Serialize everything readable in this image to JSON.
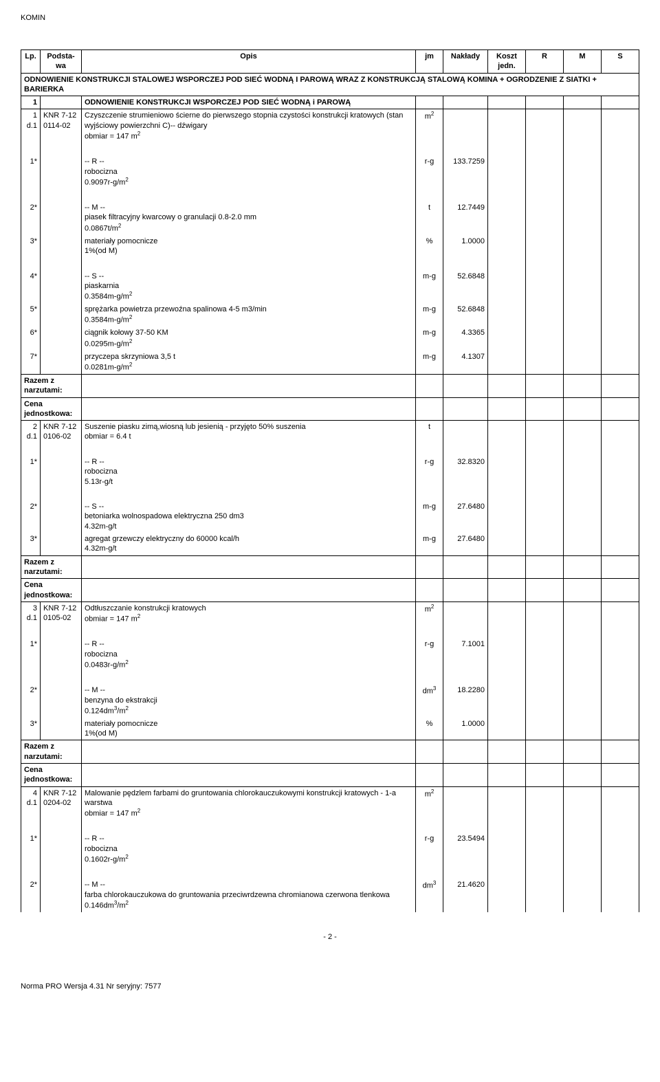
{
  "doc_title": "KOMIN",
  "page_number": "- 2 -",
  "footer_text": "Norma PRO Wersja 4.31 Nr seryjny: 7577",
  "columns": {
    "lp": "Lp.",
    "base": "Podsta-\nwa",
    "desc": "Opis",
    "jm": "jm",
    "nak": "Nakłady",
    "kj": "Koszt\njedn.",
    "r": "R",
    "m": "M",
    "s": "S"
  },
  "rows": [
    {
      "type": "section-title",
      "desc": "ODNOWIENIE KONSTRUKCJI STALOWEJ WSPORCZEJ POD SIEĆ WODNĄ I PAROWĄ WRAZ Z KONSTRUKCJĄ STALOWĄ KOMINA + OGRODZENIE Z SIATKI + BARIERKA",
      "span": 9,
      "bold": true
    },
    {
      "type": "row",
      "lp": "1",
      "base": "",
      "desc": "ODNOWIENIE KONSTRUKCJI WSPORCZEJ POD SIEĆ WODNĄ i PAROWĄ",
      "jm": "",
      "nak": "",
      "bold": true
    },
    {
      "type": "row",
      "lp": "1\nd.1",
      "base": "KNR 7-12\n0114-02",
      "desc": "Czyszczenie strumieniowo ścierne do pierwszego stopnia czystości konstrukcji kratowych (stan wyjściowy powierzchni C)-- dźwigary\nobmiar = 147 m²",
      "jm": "m²",
      "nak": ""
    },
    {
      "type": "blank"
    },
    {
      "type": "sub",
      "lp": "1*",
      "desc": "-- R --\nrobocizna\n0.9097r-g/m²",
      "jm": "r-g",
      "nak": "133.7259"
    },
    {
      "type": "blank"
    },
    {
      "type": "sub",
      "lp": "2*",
      "desc": "-- M --\npiasek filtracyjny kwarcowy o granulacji 0.8-2.0 mm\n0.0867t/m²",
      "jm": "t",
      "nak": "12.7449"
    },
    {
      "type": "sub",
      "lp": "3*",
      "desc": "materiały pomocnicze\n1%(od M)",
      "jm": "%",
      "nak": "1.0000"
    },
    {
      "type": "blank"
    },
    {
      "type": "sub",
      "lp": "4*",
      "desc": "-- S --\npiaskarnia\n0.3584m-g/m²",
      "jm": "m-g",
      "nak": "52.6848"
    },
    {
      "type": "sub",
      "lp": "5*",
      "desc": "sprężarka powietrza przewoźna spalinowa 4-5 m3/min\n0.3584m-g/m²",
      "jm": "m-g",
      "nak": "52.6848"
    },
    {
      "type": "sub",
      "lp": "6*",
      "desc": "ciągnik kołowy 37-50 KM\n0.0295m-g/m²",
      "jm": "m-g",
      "nak": "4.3365"
    },
    {
      "type": "sub",
      "lp": "7*",
      "desc": "przyczepa skrzyniowa 3,5 t\n0.0281m-g/m²",
      "jm": "m-g",
      "nak": "4.1307"
    },
    {
      "type": "summary",
      "desc": "Razem z narzutami:"
    },
    {
      "type": "summary",
      "desc": "Cena jednostkowa:"
    },
    {
      "type": "row",
      "lp": "2\nd.1",
      "base": "KNR 7-12\n0106-02",
      "desc": "Suszenie piasku zimą,wiosną lub jesienią - przyjęto 50% suszenia\nobmiar = 6.4 t",
      "jm": "t",
      "nak": ""
    },
    {
      "type": "blank"
    },
    {
      "type": "sub",
      "lp": "1*",
      "desc": "-- R --\nrobocizna\n5.13r-g/t",
      "jm": "r-g",
      "nak": "32.8320"
    },
    {
      "type": "blank"
    },
    {
      "type": "sub",
      "lp": "2*",
      "desc": "-- S --\nbetoniarka wolnospadowa elektryczna 250 dm3\n4.32m-g/t",
      "jm": "m-g",
      "nak": "27.6480"
    },
    {
      "type": "sub",
      "lp": "3*",
      "desc": "agregat grzewczy elektryczny do 60000 kcal/h\n4.32m-g/t",
      "jm": "m-g",
      "nak": "27.6480"
    },
    {
      "type": "summary",
      "desc": "Razem z narzutami:"
    },
    {
      "type": "summary",
      "desc": "Cena jednostkowa:"
    },
    {
      "type": "row",
      "lp": "3\nd.1",
      "base": "KNR 7-12\n0105-02",
      "desc": "Odtłuszczanie konstrukcji kratowych\nobmiar = 147 m²",
      "jm": "m²",
      "nak": ""
    },
    {
      "type": "blank"
    },
    {
      "type": "sub",
      "lp": "1*",
      "desc": "-- R --\nrobocizna\n0.0483r-g/m²",
      "jm": "r-g",
      "nak": "7.1001"
    },
    {
      "type": "blank"
    },
    {
      "type": "sub",
      "lp": "2*",
      "desc": "-- M --\nbenzyna do ekstrakcji\n0.124dm³/m²",
      "jm": "dm³",
      "nak": "18.2280"
    },
    {
      "type": "sub",
      "lp": "3*",
      "desc": "materiały pomocnicze\n1%(od M)",
      "jm": "%",
      "nak": "1.0000"
    },
    {
      "type": "summary",
      "desc": "Razem z narzutami:"
    },
    {
      "type": "summary",
      "desc": "Cena jednostkowa:"
    },
    {
      "type": "row",
      "lp": "4\nd.1",
      "base": "KNR 7-12\n0204-02",
      "desc": "Malowanie pędzlem farbami do gruntowania chlorokauczukowymi konstrukcji kratowych - 1-a warstwa\nobmiar = 147 m²",
      "jm": "m²",
      "nak": ""
    },
    {
      "type": "blank"
    },
    {
      "type": "sub",
      "lp": "1*",
      "desc": "-- R --\nrobocizna\n0.1602r-g/m²",
      "jm": "r-g",
      "nak": "23.5494"
    },
    {
      "type": "blank"
    },
    {
      "type": "sub",
      "lp": "2*",
      "desc": "-- M --\nfarba chlorokauczukowa do gruntowania przeciwrdzewna chromianowa czerwona tlenkowa\n0.146dm³/m²",
      "jm": "dm³",
      "nak": "21.4620"
    }
  ]
}
